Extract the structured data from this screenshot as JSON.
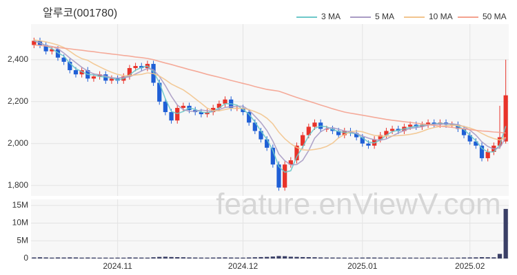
{
  "chart_data": {
    "type": "candlestick",
    "title": "알루코(001780)",
    "watermark": "feature.enViewV.com",
    "up_color": "#e8332a",
    "down_color": "#1f5fd6",
    "volume_color": "#3a3f66",
    "grid": true,
    "legend": "top-right",
    "categories": [
      null,
      null,
      null,
      null,
      null,
      null,
      null,
      null,
      null,
      null,
      null,
      null,
      null,
      null,
      "2024.11",
      null,
      null,
      null,
      null,
      null,
      null,
      null,
      null,
      null,
      null,
      null,
      null,
      null,
      null,
      null,
      null,
      null,
      null,
      null,
      null,
      "2024.12",
      null,
      null,
      null,
      null,
      null,
      null,
      null,
      null,
      null,
      null,
      null,
      null,
      null,
      null,
      null,
      null,
      null,
      null,
      null,
      "2025.01",
      null,
      null,
      null,
      null,
      null,
      null,
      null,
      null,
      null,
      null,
      null,
      null,
      null,
      null,
      null,
      null,
      null,
      "2025.02",
      null,
      null,
      null,
      null,
      null,
      null
    ],
    "open": [
      2470,
      2490,
      2470,
      2440,
      2450,
      2410,
      2390,
      2350,
      2330,
      2350,
      2310,
      2320,
      2330,
      2300,
      2310,
      2300,
      2320,
      2360,
      2370,
      2360,
      2380,
      2290,
      2200,
      2150,
      2110,
      2170,
      2180,
      2160,
      2150,
      2140,
      2150,
      2170,
      2190,
      2210,
      2170,
      2170,
      2150,
      2100,
      2060,
      2020,
      1980,
      1900,
      1790,
      1900,
      1920,
      1990,
      2040,
      2080,
      2100,
      2070,
      2070,
      2060,
      2040,
      2060,
      2050,
      2030,
      2000,
      1990,
      2020,
      2040,
      2060,
      2070,
      2060,
      2080,
      2090,
      2080,
      2090,
      2100,
      2090,
      2100,
      2090,
      2090,
      2070,
      2040,
      2010,
      1990,
      1930,
      1960,
      1990,
      2010
    ],
    "high": [
      2505,
      2505,
      2485,
      2465,
      2465,
      2425,
      2405,
      2365,
      2365,
      2365,
      2335,
      2345,
      2345,
      2325,
      2325,
      2335,
      2375,
      2385,
      2385,
      2395,
      2395,
      2305,
      2215,
      2165,
      2185,
      2195,
      2195,
      2175,
      2165,
      2165,
      2185,
      2205,
      2225,
      2225,
      2185,
      2185,
      2165,
      2115,
      2075,
      2035,
      1995,
      1915,
      1915,
      1935,
      2005,
      2055,
      2095,
      2115,
      2115,
      2085,
      2085,
      2075,
      2075,
      2075,
      2065,
      2045,
      2015,
      2035,
      2055,
      2075,
      2085,
      2085,
      2095,
      2105,
      2105,
      2105,
      2115,
      2115,
      2115,
      2115,
      2105,
      2105,
      2085,
      2055,
      2025,
      2005,
      1975,
      2005,
      2180,
      2400
    ],
    "low": [
      2455,
      2455,
      2425,
      2425,
      2395,
      2375,
      2335,
      2315,
      2315,
      2295,
      2295,
      2305,
      2285,
      2285,
      2285,
      2285,
      2305,
      2345,
      2345,
      2345,
      2275,
      2185,
      2135,
      2095,
      2095,
      2155,
      2145,
      2135,
      2125,
      2125,
      2135,
      2155,
      2175,
      2155,
      2155,
      2135,
      2085,
      2045,
      2005,
      1965,
      1885,
      1775,
      1775,
      1885,
      1905,
      1975,
      2025,
      2065,
      2055,
      2055,
      2045,
      2025,
      2025,
      2035,
      2015,
      1985,
      1975,
      1975,
      2005,
      2025,
      2045,
      2045,
      2045,
      2065,
      2065,
      2065,
      2075,
      2075,
      2075,
      2075,
      2075,
      2055,
      2025,
      1995,
      1975,
      1915,
      1915,
      1945,
      1975,
      2000
    ],
    "close": [
      2490,
      2470,
      2440,
      2450,
      2410,
      2390,
      2350,
      2330,
      2350,
      2310,
      2320,
      2330,
      2300,
      2310,
      2300,
      2320,
      2360,
      2370,
      2360,
      2380,
      2290,
      2200,
      2150,
      2110,
      2170,
      2180,
      2160,
      2150,
      2140,
      2150,
      2170,
      2190,
      2210,
      2170,
      2170,
      2150,
      2100,
      2060,
      2020,
      1980,
      1900,
      1790,
      1900,
      1920,
      1990,
      2040,
      2080,
      2100,
      2070,
      2070,
      2060,
      2040,
      2060,
      2050,
      2030,
      2000,
      1990,
      2020,
      2040,
      2060,
      2070,
      2060,
      2080,
      2090,
      2080,
      2090,
      2100,
      2090,
      2100,
      2090,
      2090,
      2070,
      2040,
      2010,
      1990,
      1930,
      1960,
      1990,
      2030,
      2230
    ],
    "volume": [
      300000,
      350000,
      300000,
      250000,
      300000,
      280000,
      320000,
      300000,
      250000,
      280000,
      260000,
      240000,
      250000,
      230000,
      250000,
      240000,
      300000,
      280000,
      260000,
      250000,
      350000,
      450000,
      500000,
      420000,
      380000,
      350000,
      300000,
      280000,
      260000,
      250000,
      270000,
      300000,
      320000,
      280000,
      260000,
      250000,
      300000,
      350000,
      400000,
      450000,
      550000,
      700000,
      650000,
      500000,
      450000,
      400000,
      380000,
      350000,
      300000,
      280000,
      270000,
      260000,
      250000,
      240000,
      250000,
      260000,
      280000,
      270000,
      260000,
      250000,
      260000,
      250000,
      240000,
      250000,
      240000,
      230000,
      250000,
      240000,
      230000,
      240000,
      230000,
      250000,
      280000,
      300000,
      320000,
      380000,
      350000,
      330000,
      1300000,
      14000000
    ],
    "series": [
      {
        "name": "3 MA",
        "color": "#6cc7c9",
        "values": [
          2490,
          2480,
          2467,
          2453,
          2433,
          2417,
          2383,
          2357,
          2343,
          2330,
          2327,
          2320,
          2317,
          2313,
          2303,
          2310,
          2327,
          2350,
          2363,
          2370,
          2343,
          2290,
          2213,
          2153,
          2143,
          2153,
          2170,
          2163,
          2150,
          2147,
          2153,
          2170,
          2190,
          2190,
          2183,
          2163,
          2140,
          2103,
          2060,
          2020,
          1967,
          1890,
          1863,
          1870,
          1937,
          1983,
          2037,
          2073,
          2083,
          2080,
          2067,
          2057,
          2053,
          2050,
          2047,
          2027,
          2007,
          2003,
          2017,
          2040,
          2057,
          2063,
          2070,
          2077,
          2083,
          2087,
          2090,
          2093,
          2097,
          2093,
          2093,
          2083,
          2067,
          2040,
          2013,
          1977,
          1960,
          1960,
          1993,
          2083
        ]
      },
      {
        "name": "5 MA",
        "color": "#a99bc4",
        "values": [
          2490,
          2480,
          2467,
          2463,
          2452,
          2432,
          2408,
          2386,
          2364,
          2346,
          2332,
          2328,
          2322,
          2314,
          2312,
          2316,
          2318,
          2332,
          2346,
          2358,
          2352,
          2320,
          2276,
          2226,
          2184,
          2162,
          2154,
          2154,
          2160,
          2156,
          2154,
          2162,
          2172,
          2176,
          2178,
          2178,
          2160,
          2130,
          2100,
          2062,
          2012,
          1950,
          1918,
          1898,
          1900,
          1920,
          1966,
          2026,
          2056,
          2072,
          2076,
          2068,
          2060,
          2056,
          2048,
          2036,
          2026,
          2018,
          2016,
          2022,
          2036,
          2050,
          2062,
          2072,
          2076,
          2080,
          2088,
          2092,
          2092,
          2094,
          2094,
          2090,
          2080,
          2064,
          2040,
          2008,
          1986,
          1974,
          1980,
          2028
        ]
      },
      {
        "name": "10 MA",
        "color": "#f2c48d",
        "values": [
          2495,
          2490,
          2485,
          2478,
          2470,
          2458,
          2440,
          2420,
          2405,
          2397,
          2380,
          2366,
          2352,
          2340,
          2330,
          2324,
          2324,
          2327,
          2330,
          2337,
          2334,
          2322,
          2304,
          2284,
          2270,
          2256,
          2236,
          2214,
          2192,
          2169,
          2157,
          2156,
          2162,
          2168,
          2168,
          2168,
          2162,
          2152,
          2140,
          2121,
          2094,
          2054,
          2023,
          1999,
          1981,
          1970,
          1968,
          1972,
          1977,
          1986,
          2002,
          2027,
          2043,
          2056,
          2060,
          2056,
          2047,
          2039,
          2036,
          2035,
          2036,
          2038,
          2040,
          2044,
          2049,
          2058,
          2069,
          2076,
          2082,
          2085,
          2087,
          2086,
          2082,
          2074,
          2064,
          2048,
          2034,
          2024,
          2017,
          2029
        ]
      },
      {
        "name": "50 MA",
        "color": "#f4a18e",
        "values": [
          2470,
          2468,
          2465,
          2462,
          2458,
          2455,
          2452,
          2448,
          2445,
          2441,
          2438,
          2434,
          2431,
          2427,
          2424,
          2420,
          2417,
          2413,
          2410,
          2406,
          2400,
          2392,
          2384,
          2377,
          2369,
          2361,
          2353,
          2346,
          2338,
          2330,
          2323,
          2316,
          2309,
          2301,
          2294,
          2287,
          2280,
          2272,
          2265,
          2258,
          2254,
          2250,
          2240,
          2230,
          2220,
          2211,
          2202,
          2193,
          2184,
          2175,
          2166,
          2158,
          2150,
          2145,
          2140,
          2135,
          2130,
          2125,
          2120,
          2115,
          2111,
          2108,
          2104,
          2101,
          2097,
          2094,
          2090,
          2087,
          2083,
          2080,
          2077,
          2073,
          2070,
          2067,
          2063,
          2060,
          2058,
          2055,
          2053,
          2050
        ]
      }
    ],
    "ylim": [
      1750,
      2570
    ],
    "yticks": [
      {
        "value": 1800,
        "label": "1,800"
      },
      {
        "value": 2000,
        "label": "2,000"
      },
      {
        "value": 2200,
        "label": "2,200"
      },
      {
        "value": 2400,
        "label": "2,400"
      }
    ],
    "y2lim": [
      0,
      16700000
    ],
    "y2ticks": [
      0,
      {
        "value": 5000000,
        "label": "5M"
      },
      {
        "value": 10000000,
        "label": "10M"
      },
      {
        "value": 15000000,
        "label": "15M"
      }
    ]
  }
}
